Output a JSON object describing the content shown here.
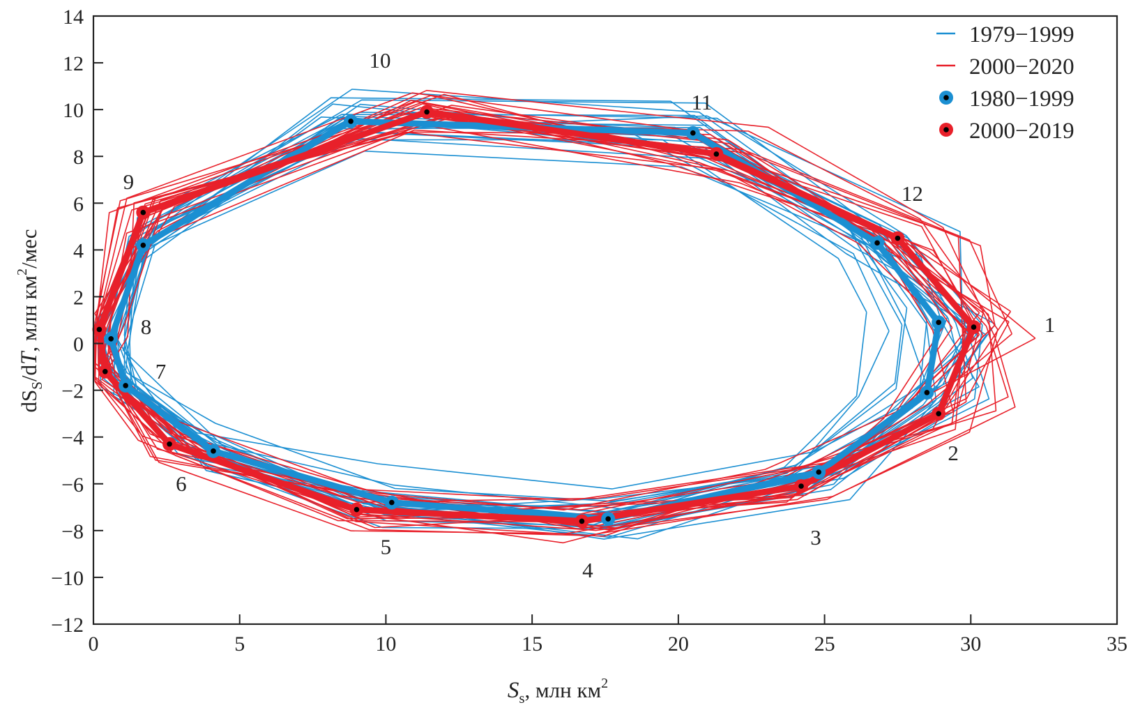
{
  "chart_data": {
    "type": "line",
    "title": "",
    "xlabel": {
      "main": "S",
      "sub": "s",
      "rest": ", млн км",
      "sup": "2"
    },
    "ylabel": {
      "pre": "dS",
      "sub": "S",
      "mid": "/d",
      "it": "T",
      "rest": ", млн км",
      "sup": "2",
      "tail": "/мес"
    },
    "xlim": [
      0,
      35
    ],
    "ylim": [
      -12,
      14
    ],
    "xticks": [
      0,
      5,
      10,
      15,
      20,
      25,
      30,
      35
    ],
    "yticks": [
      -12,
      -10,
      -8,
      -6,
      -4,
      -2,
      0,
      2,
      4,
      6,
      8,
      10,
      12,
      14
    ],
    "ytick_labels": [
      "−12",
      "−10",
      "−8",
      "−6",
      "−4",
      "−2",
      "0",
      "2",
      "4",
      "6",
      "8",
      "10",
      "12",
      "14"
    ],
    "grid": false,
    "legend_position": "top-right",
    "legend": [
      {
        "label": "1979−1999",
        "kind": "line",
        "color": "#1b8fd2"
      },
      {
        "label": "2000−2020",
        "kind": "line",
        "color": "#e8202a"
      },
      {
        "label": "1980−1999",
        "kind": "marker",
        "color": "#1b8fd2"
      },
      {
        "label": "2000−2019",
        "kind": "marker",
        "color": "#e8202a"
      }
    ],
    "months": [
      "1",
      "2",
      "3",
      "4",
      "5",
      "6",
      "7",
      "8",
      "9",
      "10",
      "11",
      "12"
    ],
    "month_label_positions_data": [
      [
        32.7,
        0.5
      ],
      [
        29.4,
        -5.0
      ],
      [
        24.7,
        -8.6
      ],
      [
        16.9,
        -10.0
      ],
      [
        10.0,
        -9.0
      ],
      [
        3.0,
        -6.3
      ],
      [
        2.3,
        -1.5
      ],
      [
        1.8,
        0.4
      ],
      [
        1.2,
        6.6
      ],
      [
        9.8,
        11.8
      ],
      [
        20.8,
        10.0
      ],
      [
        28.0,
        6.1
      ]
    ],
    "series": [
      {
        "name": "1980−1999",
        "type": "mean",
        "color": "#1b8fd2",
        "x": [
          28.9,
          28.5,
          24.8,
          17.6,
          10.2,
          4.1,
          1.1,
          0.6,
          1.7,
          8.8,
          20.5,
          26.8
        ],
        "y": [
          0.9,
          -2.1,
          -5.5,
          -7.5,
          -6.8,
          -4.6,
          -1.8,
          0.2,
          4.2,
          9.5,
          9.0,
          4.3
        ]
      },
      {
        "name": "2000−2019",
        "type": "mean",
        "color": "#e8202a",
        "x": [
          30.1,
          28.9,
          24.2,
          16.7,
          9.0,
          2.6,
          0.4,
          0.2,
          1.7,
          11.4,
          21.3,
          27.5
        ],
        "y": [
          0.7,
          -3.0,
          -6.1,
          -7.6,
          -7.1,
          -4.3,
          -1.2,
          0.6,
          5.6,
          9.9,
          8.1,
          4.5
        ]
      }
    ],
    "yearly_bundles": [
      {
        "name": "1979−1999",
        "color": "#1b8fd2",
        "years": 21,
        "base": "1980−1999",
        "spread_x": 1.2,
        "spread_y": 0.9
      },
      {
        "name": "2000−2020",
        "color": "#e8202a",
        "years": 21,
        "base": "2000−2019",
        "spread_x": 1.4,
        "spread_y": 1.1
      }
    ]
  }
}
